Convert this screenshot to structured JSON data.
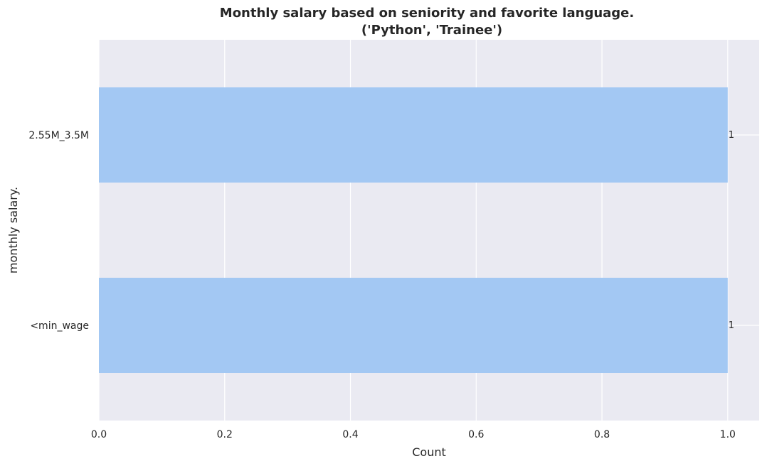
{
  "chart_data": {
    "type": "bar",
    "orientation": "horizontal",
    "title": "Monthly salary based on seniority and favorite language.",
    "subtitle": "('Python', 'Trainee')",
    "xlabel": "Count",
    "ylabel": "monthly salary.",
    "categories": [
      "2.55M_3.5M",
      "<min_wage"
    ],
    "values": [
      1,
      1
    ],
    "data_labels": [
      "1",
      "1"
    ],
    "xlim": [
      0,
      1.05
    ],
    "xticks": [
      0.0,
      0.2,
      0.4,
      0.6,
      0.8,
      1.0
    ],
    "xtick_labels": [
      "0.0",
      "0.2",
      "0.4",
      "0.6",
      "0.8",
      "1.0"
    ],
    "grid": true,
    "colors": {
      "bar": "#a3c8f3",
      "plot_background": "#eaeaf2",
      "grid": "#ffffff",
      "text": "#262626"
    }
  }
}
